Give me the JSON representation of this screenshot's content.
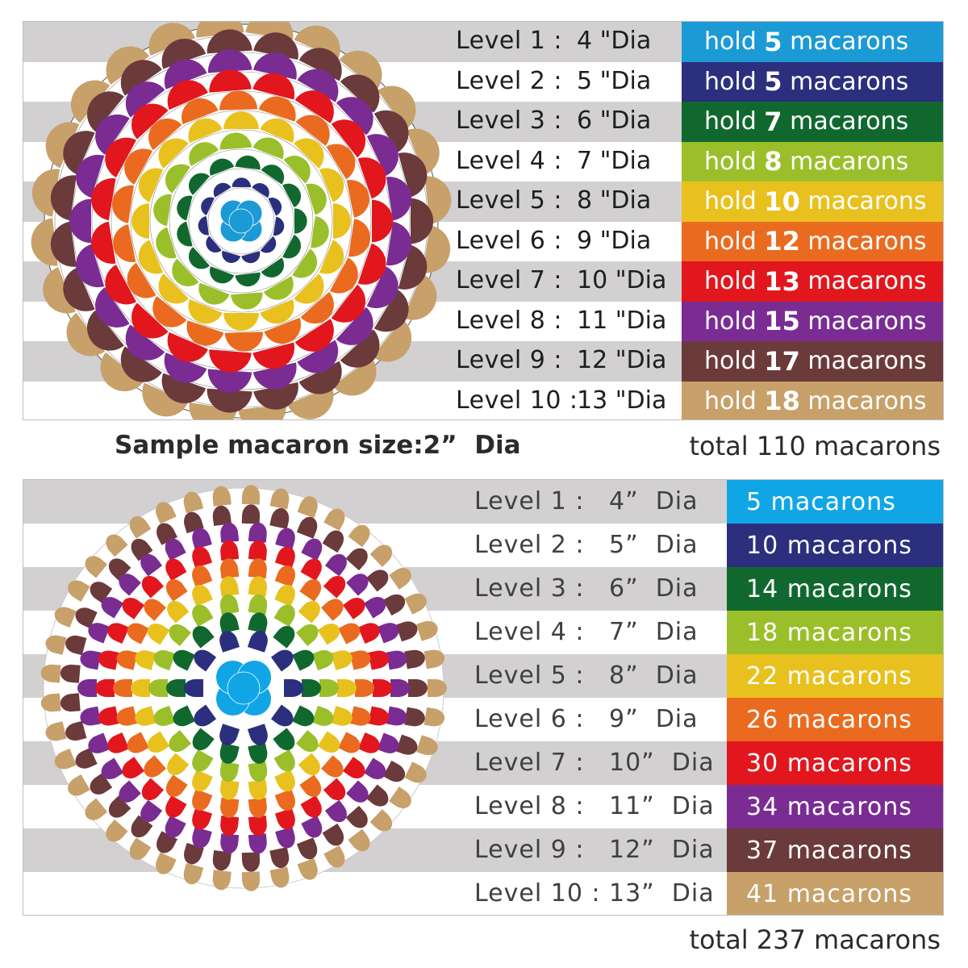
{
  "colors": {
    "level_1": "#1b9ad6",
    "level_2": "#2b2f7e",
    "level_3": "#11682f",
    "level_4": "#9bbf2a",
    "level_5": "#e9c11f",
    "level_6": "#ea6b1f",
    "level_7": "#e1171d",
    "level_8": "#7a2c93",
    "level_9": "#6b3a3b",
    "level_10": "#c7a06a",
    "stripe_grey": "#d2d0d1",
    "panel2_level_1": "#10a6e6"
  },
  "stand_1": {
    "rows": [
      {
        "level": "Level 1 :",
        "dia": "4 \"Dia",
        "hold": "hold ",
        "count": "5",
        "unit": " macarons"
      },
      {
        "level": "Level 2 :",
        "dia": "5 \"Dia",
        "hold": "hold ",
        "count": "5",
        "unit": " macarons"
      },
      {
        "level": "Level 3 :",
        "dia": "6 \"Dia",
        "hold": "hold ",
        "count": "7",
        "unit": " macarons"
      },
      {
        "level": "Level 4 :",
        "dia": "7 \"Dia",
        "hold": "hold ",
        "count": "8",
        "unit": " macarons"
      },
      {
        "level": "Level 5 :",
        "dia": "8 \"Dia",
        "hold": "hold ",
        "count": "10",
        "unit": " macarons"
      },
      {
        "level": "Level 6 :",
        "dia": "9 \"Dia",
        "hold": "hold ",
        "count": "12",
        "unit": " macarons"
      },
      {
        "level": "Level 7 :",
        "dia": "10 \"Dia",
        "hold": "hold ",
        "count": "13",
        "unit": " macarons"
      },
      {
        "level": "Level 8 :",
        "dia": "11 \"Dia",
        "hold": "hold ",
        "count": "15",
        "unit": " macarons"
      },
      {
        "level": "Level 9 :",
        "dia": "12 \"Dia",
        "hold": "hold ",
        "count": "17",
        "unit": " macarons"
      },
      {
        "level": "Level 10 :",
        "dia": "13 \"Dia",
        "hold": "hold ",
        "count": "18",
        "unit": " macarons"
      }
    ],
    "sample_caption": "Sample macaron size:2”  Dia",
    "total": "total 110 macarons"
  },
  "stand_2": {
    "rows": [
      {
        "level": "Level 1 :",
        "dia": "4”  Dia",
        "label": "5 macarons"
      },
      {
        "level": "Level 2 :",
        "dia": "5”  Dia",
        "label": "10 macarons"
      },
      {
        "level": "Level 3 :",
        "dia": "6”  Dia",
        "label": "14 macarons"
      },
      {
        "level": "Level 4 :",
        "dia": "7”  Dia",
        "label": "18 macarons"
      },
      {
        "level": "Level 5 :",
        "dia": "8”  Dia",
        "label": "22 macarons"
      },
      {
        "level": "Level 6 :",
        "dia": "9”  Dia",
        "label": "26 macarons"
      },
      {
        "level": "Level 7 :",
        "dia": "10”  Dia",
        "label": "30 macarons"
      },
      {
        "level": "Level 8 :",
        "dia": "11”  Dia",
        "label": "34 macarons"
      },
      {
        "level": "Level 9 :",
        "dia": "12”  Dia",
        "label": "37 macarons"
      },
      {
        "level": "Level 10 :",
        "dia": "13”  Dia",
        "label": "41 macarons"
      }
    ],
    "total": "total 237 macarons"
  }
}
